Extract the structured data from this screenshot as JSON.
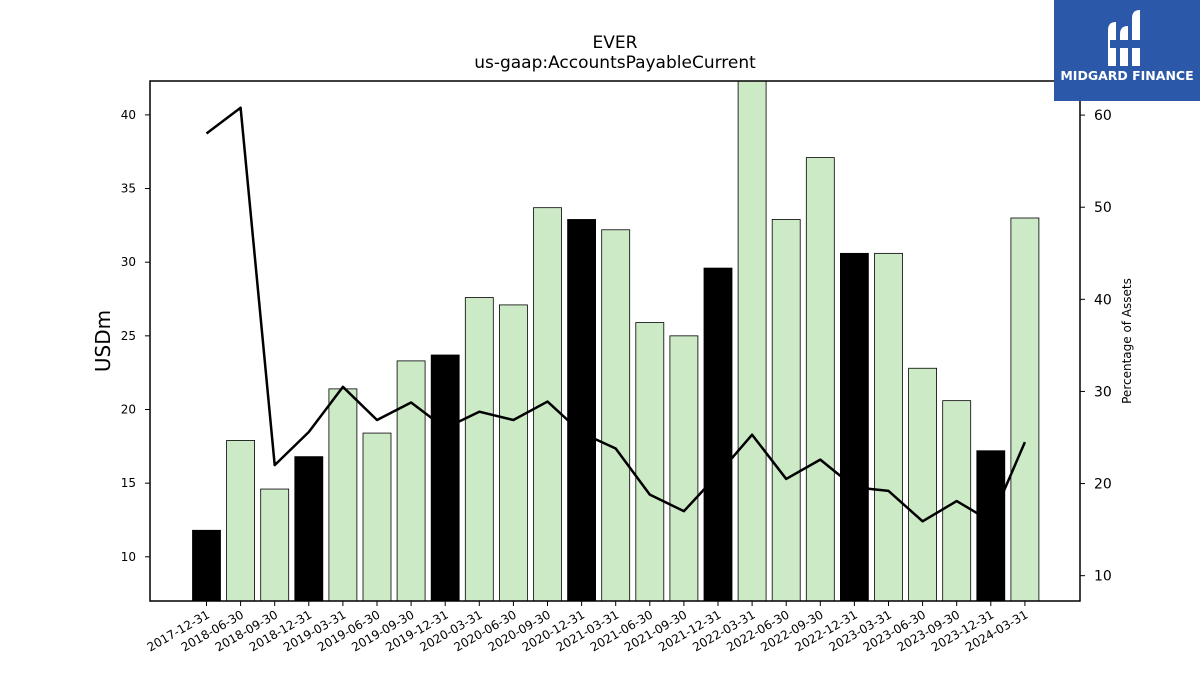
{
  "chart_data": {
    "type": "bar",
    "title": "EVER",
    "subtitle": "us-gaap:AccountsPayableCurrent",
    "ylabel": "USDm",
    "y2label": "Percentage of Assets",
    "ylim": [
      7,
      42.3
    ],
    "y2lim": [
      7.25,
      63.7
    ],
    "yticks": [
      10,
      15,
      20,
      25,
      30,
      35,
      40
    ],
    "y2ticks": [
      10,
      20,
      30,
      40,
      50,
      60
    ],
    "categories": [
      "2017-12-31",
      "2018-06-30",
      "2018-09-30",
      "2018-12-31",
      "2019-03-31",
      "2019-06-30",
      "2019-09-30",
      "2019-12-31",
      "2020-03-31",
      "2020-06-30",
      "2020-09-30",
      "2020-12-31",
      "2021-03-31",
      "2021-06-30",
      "2021-09-30",
      "2021-12-31",
      "2022-03-31",
      "2022-06-30",
      "2022-09-30",
      "2022-12-31",
      "2023-03-31",
      "2023-06-30",
      "2023-09-30",
      "2023-12-31",
      "2024-03-31"
    ],
    "values": [
      11.8,
      17.9,
      14.6,
      16.8,
      21.4,
      18.4,
      23.3,
      23.7,
      27.6,
      27.1,
      33.7,
      32.9,
      32.2,
      25.9,
      25.0,
      29.6,
      42.3,
      32.9,
      37.1,
      30.6,
      30.6,
      22.8,
      20.6,
      17.2,
      33.0
    ],
    "annual": [
      true,
      false,
      false,
      true,
      false,
      false,
      false,
      true,
      false,
      false,
      false,
      true,
      false,
      false,
      false,
      true,
      false,
      false,
      false,
      true,
      false,
      false,
      false,
      true,
      false
    ],
    "series": [
      {
        "type": "line",
        "axis": "right",
        "values": [
          58.0,
          60.8,
          22.0,
          25.6,
          30.5,
          26.9,
          28.8,
          26.0,
          27.8,
          26.9,
          28.9,
          25.5,
          23.8,
          18.8,
          17.0,
          21.0,
          25.3,
          20.5,
          22.6,
          19.6,
          19.2,
          15.9,
          18.1,
          15.9,
          24.5
        ]
      }
    ],
    "colors": {
      "annual": "#000000",
      "quarter": "#cdeac6",
      "line": "#000000"
    },
    "grid": false,
    "legend": "none"
  },
  "logo": {
    "text": "MIDGARD FINANCE",
    "icon": "midgard-logo-icon",
    "color": "#2b58a8"
  }
}
